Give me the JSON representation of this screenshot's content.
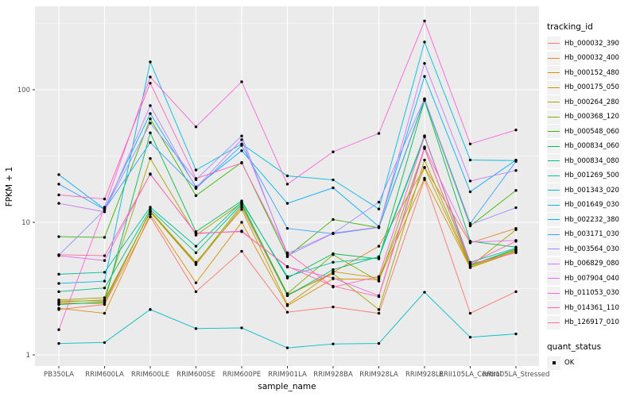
{
  "figure": {
    "background": "#FFFFFF",
    "panel_background": "#EBEBEB",
    "gridline_color": "#FFFFFF",
    "axis_text_color": "#4D4D4D",
    "tick_mark_color": "#333333",
    "point_color": "#000000"
  },
  "chart_data": {
    "type": "line",
    "title": "",
    "xlabel": "sample_name",
    "ylabel": "FPKM + 1",
    "y_scale": "log10",
    "y_ticks": [
      {
        "value": 1,
        "label": "1"
      },
      {
        "value": 10,
        "label": "10"
      },
      {
        "value": 100,
        "label": "100"
      }
    ],
    "y_minor_ticks": [
      3.1623,
      31.623,
      316.23
    ],
    "grid": true,
    "legend_position": "right",
    "categories": [
      "PB350LA",
      "RRIM600LA",
      "RRIM600LE",
      "RRIM600SE",
      "RRIM600PE",
      "RRIM901LA",
      "RRIM928BA",
      "RRIM928LA",
      "RRIM928LE",
      "RRII105LA_Control",
      "RRII105LA_Stressed"
    ],
    "series": [
      {
        "name": "Hb_000032_390",
        "color": "#F8766D",
        "values": [
          2.2,
          2.4,
          11.0,
          3.0,
          6.05,
          2.1,
          2.3,
          2.06,
          21.0,
          2.06,
          3.0
        ]
      },
      {
        "name": "Hb_000032_400",
        "color": "#EA8331",
        "values": [
          2.5,
          2.6,
          12.0,
          4.8,
          13.0,
          2.8,
          4.2,
          6.6,
          26.0,
          7.0,
          9.0
        ]
      },
      {
        "name": "Hb_000152_480",
        "color": "#D89000",
        "values": [
          2.25,
          2.06,
          11.5,
          3.5,
          10.0,
          2.35,
          3.75,
          3.7,
          21.5,
          4.55,
          6.0
        ]
      },
      {
        "name": "Hb_000175_050",
        "color": "#C09B00",
        "values": [
          2.45,
          2.45,
          12.2,
          5.0,
          12.5,
          2.4,
          4.25,
          3.8,
          25.8,
          4.6,
          6.1
        ]
      },
      {
        "name": "Hb_000264_280",
        "color": "#A3A500",
        "values": [
          2.6,
          2.7,
          30.3,
          8.0,
          14.0,
          2.85,
          4.1,
          2.2,
          29.5,
          4.65,
          8.8
        ]
      },
      {
        "name": "Hb_000368_120",
        "color": "#7CAE00",
        "values": [
          2.55,
          2.55,
          12.0,
          4.9,
          13.5,
          2.9,
          5.7,
          3.6,
          36.5,
          4.7,
          6.2
        ]
      },
      {
        "name": "Hb_000548_060",
        "color": "#39B600",
        "values": [
          7.8,
          7.7,
          60.3,
          15.9,
          28.3,
          5.5,
          10.5,
          9.1,
          84.0,
          9.4,
          17.4
        ]
      },
      {
        "name": "Hb_000834_060",
        "color": "#00BB4E",
        "values": [
          2.4,
          2.5,
          47.3,
          8.5,
          14.5,
          3.8,
          5.8,
          5.3,
          83.0,
          7.2,
          6.5
        ]
      },
      {
        "name": "Hb_000834_080",
        "color": "#00BF7D",
        "values": [
          3.0,
          3.2,
          12.5,
          5.9,
          13.8,
          2.8,
          4.4,
          5.5,
          45.0,
          4.75,
          6.3
        ]
      },
      {
        "name": "Hb_001269_500",
        "color": "#00C1A3",
        "values": [
          4.06,
          4.2,
          13.0,
          6.6,
          14.2,
          3.9,
          5.0,
          5.4,
          44.0,
          5.0,
          6.4
        ]
      },
      {
        "name": "Hb_001343_020",
        "color": "#00BFC4",
        "values": [
          1.22,
          1.24,
          2.2,
          1.58,
          1.6,
          1.13,
          1.21,
          1.22,
          2.97,
          1.36,
          1.44
        ]
      },
      {
        "name": "Hb_001649_030",
        "color": "#00BAE0",
        "values": [
          3.46,
          3.6,
          162.0,
          24.8,
          39.0,
          22.4,
          20.9,
          12.6,
          229.0,
          29.5,
          29.2
        ]
      },
      {
        "name": "Hb_002232_380",
        "color": "#00B0F6",
        "values": [
          22.9,
          12.6,
          66.1,
          18.5,
          34.7,
          13.9,
          18.2,
          9.3,
          126.0,
          17.0,
          29.5
        ]
      },
      {
        "name": "Hb_003171_030",
        "color": "#35A2FF",
        "values": [
          19.4,
          12.5,
          40.0,
          18.0,
          38.0,
          9.0,
          8.2,
          9.15,
          85.0,
          9.8,
          28.8
        ]
      },
      {
        "name": "Hb_003564_030",
        "color": "#9590FF",
        "values": [
          5.65,
          12.4,
          56.0,
          21.0,
          44.8,
          5.6,
          8.25,
          14.2,
          85.5,
          9.6,
          12.9
        ]
      },
      {
        "name": "Hb_006829_080",
        "color": "#C77CFF",
        "values": [
          13.9,
          12.0,
          75.9,
          18.2,
          42.0,
          5.8,
          8.3,
          9.2,
          158.0,
          20.5,
          24.6
        ]
      },
      {
        "name": "Hb_007904_040",
        "color": "#E76BF3",
        "values": [
          5.6,
          5.15,
          23.2,
          8.2,
          8.6,
          4.6,
          3.8,
          2.8,
          37.0,
          7.1,
          7.3
        ]
      },
      {
        "name": "Hb_011053_030",
        "color": "#FA62DB",
        "values": [
          1.55,
          13.0,
          124.7,
          52.5,
          114.8,
          19.4,
          34.0,
          46.8,
          330.0,
          39.0,
          49.7
        ]
      },
      {
        "name": "Hb_014361_110",
        "color": "#FF62BC",
        "values": [
          16.1,
          15.0,
          112.0,
          21.4,
          28.0,
          5.9,
          3.25,
          3.9,
          44.5,
          4.9,
          7.2
        ]
      },
      {
        "name": "Hb_126917_010",
        "color": "#FF6A98",
        "values": [
          5.7,
          5.6,
          23.0,
          8.3,
          8.5,
          4.65,
          3.3,
          2.75,
          36.0,
          4.85,
          5.9
        ]
      }
    ],
    "legend": {
      "color_title": "tracking_id",
      "shape_title": "quant_status",
      "shape_items": [
        {
          "label": "OK"
        }
      ]
    }
  }
}
